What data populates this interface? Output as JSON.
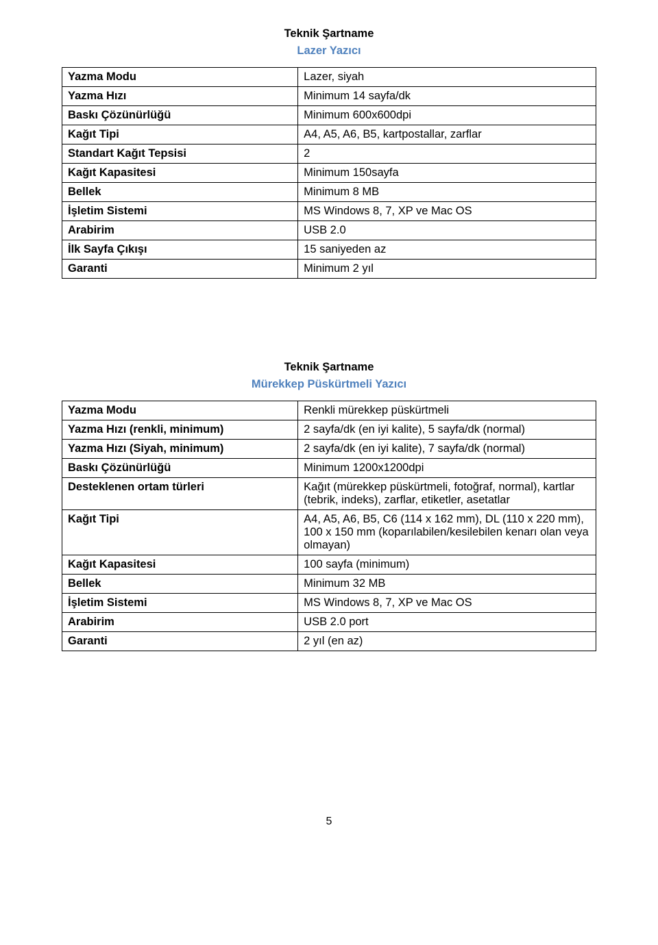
{
  "heading_color": "#4f81bd",
  "section1": {
    "title": "Teknik Şartname",
    "subtitle": "Lazer Yazıcı",
    "rows": [
      {
        "label": "Yazma Modu",
        "value": "Lazer, siyah"
      },
      {
        "label": "Yazma Hızı",
        "value": "Minimum 14 sayfa/dk"
      },
      {
        "label": "Baskı Çözünürlüğü",
        "value": "Minimum 600x600dpi"
      },
      {
        "label": "Kağıt Tipi",
        "value": "A4, A5, A6, B5, kartpostallar, zarflar"
      },
      {
        "label": "Standart Kağıt Tepsisi",
        "value": "2"
      },
      {
        "label": "Kağıt Kapasitesi",
        "value": "Minimum 150sayfa"
      },
      {
        "label": "Bellek",
        "value": "Minimum 8 MB"
      },
      {
        "label": "İşletim Sistemi",
        "value": "MS Windows 8, 7, XP ve Mac OS"
      },
      {
        "label": "Arabirim",
        "value": "USB 2.0"
      },
      {
        "label": "İlk Sayfa Çıkışı",
        "value": "15 saniyeden az"
      },
      {
        "label": "Garanti",
        "value": "Minimum 2 yıl"
      }
    ]
  },
  "section2": {
    "title": "Teknik Şartname",
    "subtitle": "Mürekkep Püskürtmeli Yazıcı",
    "rows": [
      {
        "label": "Yazma Modu",
        "value": "Renkli mürekkep püskürtmeli"
      },
      {
        "label": "Yazma Hızı (renkli, minimum)",
        "value": "2 sayfa/dk (en iyi kalite), 5 sayfa/dk (normal)"
      },
      {
        "label": "Yazma Hızı (Siyah, minimum)",
        "value": "2 sayfa/dk (en iyi kalite), 7 sayfa/dk (normal)"
      },
      {
        "label": "Baskı Çözünürlüğü",
        "value": "Minimum 1200x1200dpi"
      },
      {
        "label": "Desteklenen ortam türleri",
        "value": "Kağıt (mürekkep püskürtmeli, fotoğraf, normal), kartlar (tebrik, indeks), zarflar, etiketler, asetatlar"
      },
      {
        "label": "Kağıt Tipi",
        "value": "A4, A5, A6, B5, C6 (114 x 162 mm), DL (110 x 220 mm), 100 x 150 mm (koparılabilen/kesilebilen kenarı olan veya olmayan)"
      },
      {
        "label": "Kağıt Kapasitesi",
        "value": "100 sayfa (minimum)"
      },
      {
        "label": "Bellek",
        "value": "Minimum 32 MB"
      },
      {
        "label": "İşletim Sistemi",
        "value": "MS Windows 8, 7, XP ve Mac OS"
      },
      {
        "label": "Arabirim",
        "value": "USB 2.0 port"
      },
      {
        "label": "Garanti",
        "value": "2 yıl (en az)"
      }
    ]
  },
  "page_number": "5"
}
